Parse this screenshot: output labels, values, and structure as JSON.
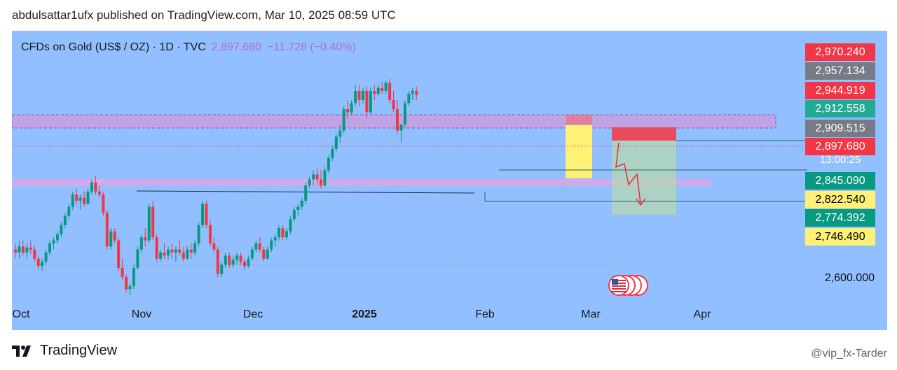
{
  "header": "abdulsattar1ufx published on TradingView.com, Mar 10, 2025 08:59 UTC",
  "symbol": {
    "name": "CFDs on Gold (US$ / OZ) · 1D · TVC",
    "price": "2,897.680",
    "change": "−11.728 (−0.40%)"
  },
  "price_labels": [
    {
      "value": "2,970.240",
      "color": "#f23645"
    },
    {
      "value": "2,957.134",
      "color": "#787b86"
    },
    {
      "value": "2,944.919",
      "color": "#f23645"
    },
    {
      "value": "2,912.558",
      "color": "#22ab94"
    },
    {
      "value": "2,909.515",
      "color": "#787b86"
    },
    {
      "value": "2,897.680",
      "color": "#f23645"
    },
    {
      "value": "2,845.090",
      "color": "#089981"
    },
    {
      "value": "2,822.540",
      "color": "#fff176"
    },
    {
      "value": "2,774.392",
      "color": "#089981"
    },
    {
      "value": "2,746.490",
      "color": "#fff176"
    }
  ],
  "countdown": "13:00:25",
  "axis_label": "2,600.000",
  "x_ticks": [
    "Oct",
    "Nov",
    "Dec",
    "2025",
    "Feb",
    "Mar",
    "Apr"
  ],
  "footer": {
    "brand": "TradingView",
    "watermark": "@vip_fx-Tarder"
  },
  "colors": {
    "background": "#91bfff",
    "up": "#089981",
    "down": "#f23645",
    "zone": "#c79ee0"
  },
  "chart_data": {
    "type": "candlestick",
    "y_visible_range": [
      2580,
      3000
    ],
    "candles": [
      {
        "o": 2645,
        "h": 2655,
        "l": 2630,
        "c": 2640
      },
      {
        "o": 2640,
        "h": 2660,
        "l": 2630,
        "c": 2650
      },
      {
        "o": 2650,
        "h": 2660,
        "l": 2635,
        "c": 2640
      },
      {
        "o": 2640,
        "h": 2655,
        "l": 2630,
        "c": 2648
      },
      {
        "o": 2648,
        "h": 2660,
        "l": 2638,
        "c": 2645
      },
      {
        "o": 2645,
        "h": 2652,
        "l": 2625,
        "c": 2630
      },
      {
        "o": 2630,
        "h": 2635,
        "l": 2612,
        "c": 2618
      },
      {
        "o": 2618,
        "h": 2630,
        "l": 2610,
        "c": 2625
      },
      {
        "o": 2625,
        "h": 2645,
        "l": 2620,
        "c": 2640
      },
      {
        "o": 2640,
        "h": 2660,
        "l": 2635,
        "c": 2655
      },
      {
        "o": 2655,
        "h": 2665,
        "l": 2645,
        "c": 2660
      },
      {
        "o": 2660,
        "h": 2675,
        "l": 2655,
        "c": 2670
      },
      {
        "o": 2670,
        "h": 2690,
        "l": 2665,
        "c": 2685
      },
      {
        "o": 2685,
        "h": 2705,
        "l": 2680,
        "c": 2700
      },
      {
        "o": 2700,
        "h": 2720,
        "l": 2695,
        "c": 2715
      },
      {
        "o": 2715,
        "h": 2740,
        "l": 2710,
        "c": 2735
      },
      {
        "o": 2735,
        "h": 2745,
        "l": 2720,
        "c": 2725
      },
      {
        "o": 2725,
        "h": 2735,
        "l": 2710,
        "c": 2730
      },
      {
        "o": 2730,
        "h": 2740,
        "l": 2715,
        "c": 2720
      },
      {
        "o": 2720,
        "h": 2745,
        "l": 2718,
        "c": 2740
      },
      {
        "o": 2740,
        "h": 2760,
        "l": 2735,
        "c": 2755
      },
      {
        "o": 2755,
        "h": 2765,
        "l": 2735,
        "c": 2740
      },
      {
        "o": 2740,
        "h": 2750,
        "l": 2730,
        "c": 2735
      },
      {
        "o": 2735,
        "h": 2740,
        "l": 2700,
        "c": 2705
      },
      {
        "o": 2705,
        "h": 2710,
        "l": 2645,
        "c": 2650
      },
      {
        "o": 2650,
        "h": 2680,
        "l": 2645,
        "c": 2675
      },
      {
        "o": 2675,
        "h": 2680,
        "l": 2655,
        "c": 2660
      },
      {
        "o": 2660,
        "h": 2665,
        "l": 2610,
        "c": 2615
      },
      {
        "o": 2615,
        "h": 2630,
        "l": 2595,
        "c": 2600
      },
      {
        "o": 2600,
        "h": 2605,
        "l": 2575,
        "c": 2580
      },
      {
        "o": 2580,
        "h": 2590,
        "l": 2570,
        "c": 2585
      },
      {
        "o": 2585,
        "h": 2620,
        "l": 2580,
        "c": 2615
      },
      {
        "o": 2615,
        "h": 2650,
        "l": 2612,
        "c": 2645
      },
      {
        "o": 2645,
        "h": 2670,
        "l": 2640,
        "c": 2665
      },
      {
        "o": 2665,
        "h": 2680,
        "l": 2650,
        "c": 2660
      },
      {
        "o": 2660,
        "h": 2720,
        "l": 2655,
        "c": 2715
      },
      {
        "o": 2715,
        "h": 2725,
        "l": 2660,
        "c": 2665
      },
      {
        "o": 2665,
        "h": 2670,
        "l": 2625,
        "c": 2630
      },
      {
        "o": 2630,
        "h": 2645,
        "l": 2625,
        "c": 2640
      },
      {
        "o": 2640,
        "h": 2655,
        "l": 2630,
        "c": 2635
      },
      {
        "o": 2635,
        "h": 2650,
        "l": 2628,
        "c": 2645
      },
      {
        "o": 2645,
        "h": 2655,
        "l": 2630,
        "c": 2640
      },
      {
        "o": 2640,
        "h": 2650,
        "l": 2625,
        "c": 2645
      },
      {
        "o": 2645,
        "h": 2660,
        "l": 2635,
        "c": 2640
      },
      {
        "o": 2640,
        "h": 2650,
        "l": 2625,
        "c": 2630
      },
      {
        "o": 2630,
        "h": 2650,
        "l": 2628,
        "c": 2645
      },
      {
        "o": 2645,
        "h": 2655,
        "l": 2630,
        "c": 2640
      },
      {
        "o": 2640,
        "h": 2660,
        "l": 2635,
        "c": 2655
      },
      {
        "o": 2655,
        "h": 2690,
        "l": 2650,
        "c": 2685
      },
      {
        "o": 2685,
        "h": 2725,
        "l": 2680,
        "c": 2720
      },
      {
        "o": 2720,
        "h": 2725,
        "l": 2680,
        "c": 2685
      },
      {
        "o": 2685,
        "h": 2695,
        "l": 2650,
        "c": 2655
      },
      {
        "o": 2655,
        "h": 2665,
        "l": 2640,
        "c": 2645
      },
      {
        "o": 2645,
        "h": 2650,
        "l": 2600,
        "c": 2605
      },
      {
        "o": 2605,
        "h": 2625,
        "l": 2600,
        "c": 2620
      },
      {
        "o": 2620,
        "h": 2640,
        "l": 2615,
        "c": 2635
      },
      {
        "o": 2635,
        "h": 2640,
        "l": 2615,
        "c": 2620
      },
      {
        "o": 2620,
        "h": 2635,
        "l": 2615,
        "c": 2628
      },
      {
        "o": 2628,
        "h": 2640,
        "l": 2620,
        "c": 2635
      },
      {
        "o": 2635,
        "h": 2640,
        "l": 2620,
        "c": 2625
      },
      {
        "o": 2625,
        "h": 2630,
        "l": 2612,
        "c": 2618
      },
      {
        "o": 2618,
        "h": 2635,
        "l": 2615,
        "c": 2630
      },
      {
        "o": 2630,
        "h": 2650,
        "l": 2628,
        "c": 2645
      },
      {
        "o": 2645,
        "h": 2660,
        "l": 2640,
        "c": 2655
      },
      {
        "o": 2655,
        "h": 2665,
        "l": 2640,
        "c": 2645
      },
      {
        "o": 2645,
        "h": 2650,
        "l": 2625,
        "c": 2630
      },
      {
        "o": 2630,
        "h": 2650,
        "l": 2628,
        "c": 2645
      },
      {
        "o": 2645,
        "h": 2665,
        "l": 2640,
        "c": 2660
      },
      {
        "o": 2660,
        "h": 2670,
        "l": 2650,
        "c": 2665
      },
      {
        "o": 2665,
        "h": 2685,
        "l": 2660,
        "c": 2680
      },
      {
        "o": 2680,
        "h": 2685,
        "l": 2660,
        "c": 2665
      },
      {
        "o": 2665,
        "h": 2680,
        "l": 2660,
        "c": 2675
      },
      {
        "o": 2675,
        "h": 2700,
        "l": 2670,
        "c": 2695
      },
      {
        "o": 2695,
        "h": 2715,
        "l": 2690,
        "c": 2710
      },
      {
        "o": 2710,
        "h": 2720,
        "l": 2700,
        "c": 2715
      },
      {
        "o": 2715,
        "h": 2730,
        "l": 2710,
        "c": 2725
      },
      {
        "o": 2725,
        "h": 2755,
        "l": 2720,
        "c": 2750
      },
      {
        "o": 2750,
        "h": 2765,
        "l": 2745,
        "c": 2760
      },
      {
        "o": 2760,
        "h": 2775,
        "l": 2750,
        "c": 2768
      },
      {
        "o": 2768,
        "h": 2780,
        "l": 2750,
        "c": 2760
      },
      {
        "o": 2760,
        "h": 2775,
        "l": 2745,
        "c": 2750
      },
      {
        "o": 2750,
        "h": 2780,
        "l": 2748,
        "c": 2775
      },
      {
        "o": 2775,
        "h": 2800,
        "l": 2770,
        "c": 2795
      },
      {
        "o": 2795,
        "h": 2815,
        "l": 2790,
        "c": 2810
      },
      {
        "o": 2810,
        "h": 2835,
        "l": 2805,
        "c": 2830
      },
      {
        "o": 2830,
        "h": 2850,
        "l": 2820,
        "c": 2840
      },
      {
        "o": 2840,
        "h": 2880,
        "l": 2835,
        "c": 2875
      },
      {
        "o": 2875,
        "h": 2890,
        "l": 2860,
        "c": 2870
      },
      {
        "o": 2870,
        "h": 2890,
        "l": 2865,
        "c": 2885
      },
      {
        "o": 2885,
        "h": 2915,
        "l": 2880,
        "c": 2905
      },
      {
        "o": 2905,
        "h": 2915,
        "l": 2880,
        "c": 2890
      },
      {
        "o": 2890,
        "h": 2910,
        "l": 2885,
        "c": 2905
      },
      {
        "o": 2905,
        "h": 2912,
        "l": 2860,
        "c": 2870
      },
      {
        "o": 2870,
        "h": 2910,
        "l": 2865,
        "c": 2905
      },
      {
        "o": 2905,
        "h": 2915,
        "l": 2890,
        "c": 2900
      },
      {
        "o": 2900,
        "h": 2915,
        "l": 2895,
        "c": 2910
      },
      {
        "o": 2910,
        "h": 2920,
        "l": 2900,
        "c": 2905
      },
      {
        "o": 2905,
        "h": 2922,
        "l": 2900,
        "c": 2918
      },
      {
        "o": 2918,
        "h": 2925,
        "l": 2885,
        "c": 2890
      },
      {
        "o": 2890,
        "h": 2905,
        "l": 2870,
        "c": 2875
      },
      {
        "o": 2875,
        "h": 2890,
        "l": 2835,
        "c": 2840
      },
      {
        "o": 2840,
        "h": 2850,
        "l": 2820,
        "c": 2850
      },
      {
        "o": 2850,
        "h": 2890,
        "l": 2845,
        "c": 2885
      },
      {
        "o": 2885,
        "h": 2905,
        "l": 2880,
        "c": 2900
      },
      {
        "o": 2900,
        "h": 2910,
        "l": 2890,
        "c": 2905
      },
      {
        "o": 2905,
        "h": 2912,
        "l": 2890,
        "c": 2898
      }
    ]
  }
}
